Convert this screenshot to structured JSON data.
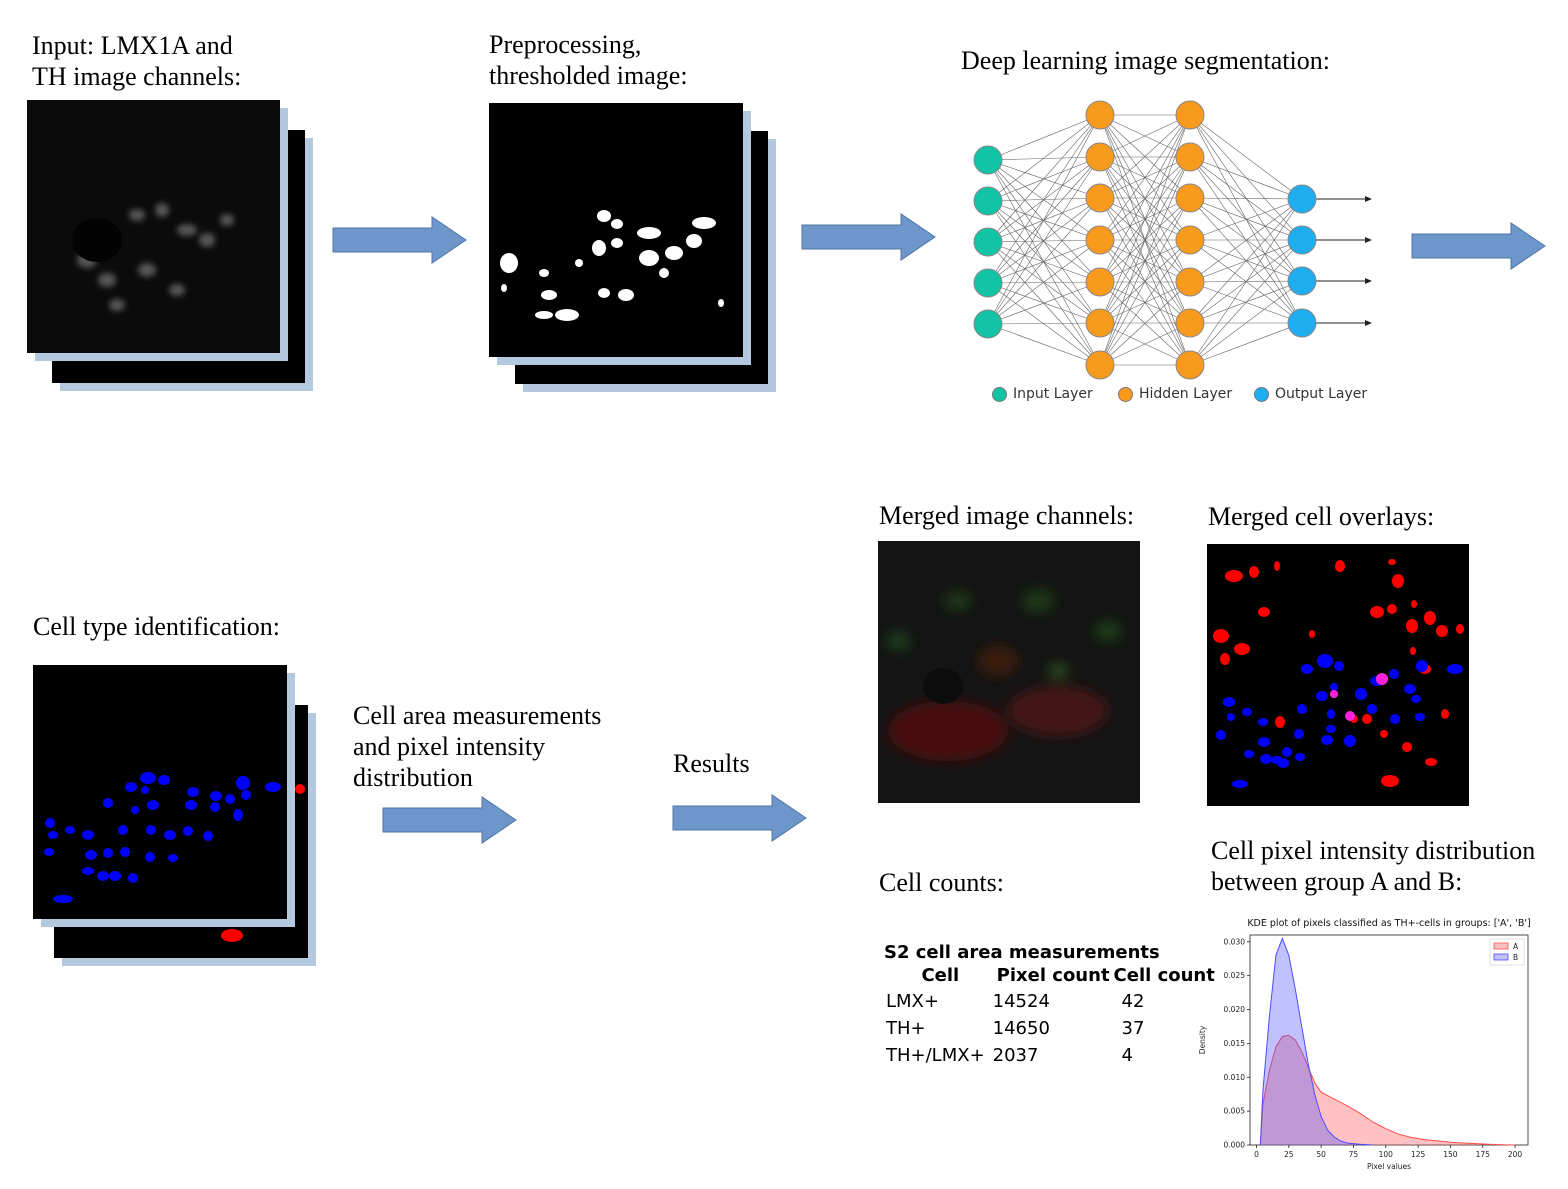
{
  "labels": {
    "input": [
      "Input: LMX1A and",
      "TH image channels:"
    ],
    "preprocessing": [
      "Preprocessing,",
      "thresholded image:"
    ],
    "deep_learning": "Deep learning image segmentation:",
    "merged_channels": "Merged image channels:",
    "merged_overlays": "Merged cell overlays:",
    "cell_type": "Cell type identification:",
    "cell_area": [
      "Cell area measurements",
      "and pixel intensity",
      "distribution"
    ],
    "results": "Results",
    "cell_counts": "Cell counts:",
    "intensity_dist": [
      "Cell pixel intensity distribution",
      "between group A and B:"
    ]
  },
  "network_legend": {
    "input": "Input Layer",
    "hidden": "Hidden Layer",
    "output": "Output Layer",
    "colors": {
      "input": "#11c4a6",
      "hidden": "#f89a1c",
      "output": "#1eaef0"
    }
  },
  "measurements": {
    "title": "S2 cell area measurements",
    "headers": [
      "Cell",
      "Pixel count",
      "Cell count"
    ],
    "rows": [
      [
        "LMX+",
        "14524",
        "42"
      ],
      [
        "TH+",
        "14650",
        "37"
      ],
      [
        "TH+/LMX+",
        "2037",
        "4"
      ]
    ]
  },
  "chart_data": {
    "type": "area",
    "title": "KDE plot of pixels classified as TH+-cells in groups: ['A', 'B']",
    "xlabel": "Pixel values",
    "ylabel": "Density",
    "xlim": [
      -5,
      210
    ],
    "ylim": [
      0,
      0.031
    ],
    "xticks": [
      0,
      25,
      50,
      75,
      100,
      125,
      150,
      175,
      200
    ],
    "yticks": [
      "0.000",
      "0.005",
      "0.010",
      "0.015",
      "0.020",
      "0.025",
      "0.030"
    ],
    "legend_position": "top-right",
    "series": [
      {
        "name": "A",
        "color": "#ff4d4d",
        "x": [
          3,
          5,
          10,
          15,
          20,
          25,
          30,
          35,
          40,
          45,
          50,
          60,
          70,
          80,
          90,
          100,
          110,
          120,
          130,
          140,
          150,
          160,
          170,
          180,
          190,
          200
        ],
        "y": [
          0,
          0.006,
          0.011,
          0.0145,
          0.016,
          0.0162,
          0.0155,
          0.0138,
          0.0115,
          0.0092,
          0.0078,
          0.0068,
          0.0058,
          0.0047,
          0.0034,
          0.0024,
          0.0016,
          0.0011,
          0.0008,
          0.0006,
          0.0004,
          0.0003,
          0.0002,
          0.0001,
          5e-05,
          0
        ]
      },
      {
        "name": "B",
        "color": "#4d4dff",
        "x": [
          3,
          5,
          10,
          15,
          20,
          25,
          30,
          35,
          40,
          45,
          50,
          55,
          60,
          65,
          70,
          80,
          90
        ],
        "y": [
          0,
          0.008,
          0.019,
          0.028,
          0.0305,
          0.028,
          0.023,
          0.0175,
          0.012,
          0.0075,
          0.0042,
          0.0022,
          0.0012,
          0.0006,
          0.0003,
          0.0001,
          0
        ]
      }
    ]
  }
}
